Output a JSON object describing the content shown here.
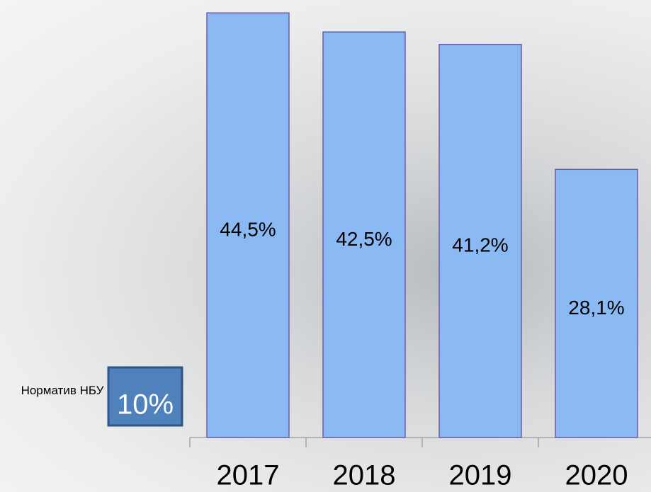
{
  "chart_data": {
    "type": "bar",
    "categories": [
      "2017",
      "2018",
      "2019",
      "2020"
    ],
    "values": [
      44.5,
      42.5,
      41.2,
      28.1
    ],
    "value_labels": [
      "44,5%",
      "42,5%",
      "41,2%",
      "28,1%"
    ],
    "color": "#8ab9f3",
    "ylim": [
      0,
      45
    ],
    "reference": {
      "label": "Норматив НБУ",
      "value": 10,
      "value_label": "10%",
      "color": "#4f81bd"
    }
  }
}
